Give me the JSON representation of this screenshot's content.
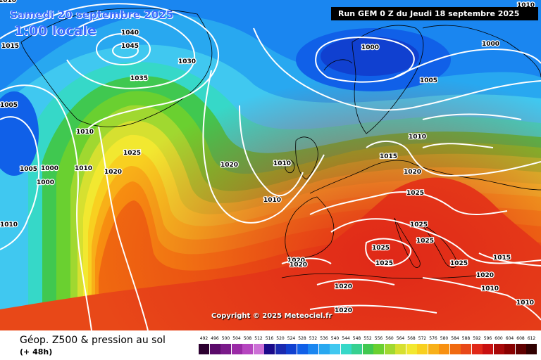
{
  "header": {
    "date_title": "Samedi 20 septembre 2025",
    "local_time": "1:00 locale",
    "run_info": "Run GEM 0 Z du Jeudi 18 septembre 2025"
  },
  "footer": {
    "product": "Géop. Z500 & pression au sol",
    "lead_time": "(+ 48h)",
    "copyright": "Copyright © 2025 Meteociel.fr"
  },
  "legend": {
    "values": [
      "492",
      "496",
      "500",
      "504",
      "508",
      "512",
      "516",
      "520",
      "524",
      "528",
      "532",
      "536",
      "540",
      "544",
      "548",
      "552",
      "556",
      "560",
      "564",
      "568",
      "572",
      "576",
      "580",
      "584",
      "588",
      "592",
      "596",
      "600",
      "604",
      "608",
      "612"
    ],
    "colors": [
      "#2c0030",
      "#5a0a6a",
      "#7a1a8a",
      "#9a2aa6",
      "#b646c0",
      "#cc70d6",
      "#1a0a8a",
      "#1a2ab0",
      "#1040d0",
      "#1060e8",
      "#1a86f0",
      "#28a8f0",
      "#40c8f0",
      "#36d8c8",
      "#36d090",
      "#40c850",
      "#6ad030",
      "#a0d830",
      "#d6e030",
      "#f2e830",
      "#f8d020",
      "#f8b018",
      "#f89010",
      "#f06a10",
      "#e84818",
      "#e02818",
      "#c81010",
      "#a80808",
      "#880000",
      "#600000",
      "#300000"
    ]
  },
  "map": {
    "pressure_labels": [
      "1040",
      "1045",
      "1030",
      "1035",
      "1015",
      "1005",
      "1010",
      "1025",
      "1020",
      "1005",
      "1000",
      "1010",
      "1020",
      "1000",
      "1010",
      "1000",
      "1005",
      "1010",
      "1010",
      "1020",
      "1010",
      "1010",
      "1015",
      "1000",
      "1010",
      "1020",
      "1025",
      "1025",
      "1025",
      "1025",
      "1025",
      "1025",
      "1020",
      "1020",
      "1020",
      "1020",
      "1015",
      "1010",
      "1010"
    ]
  }
}
